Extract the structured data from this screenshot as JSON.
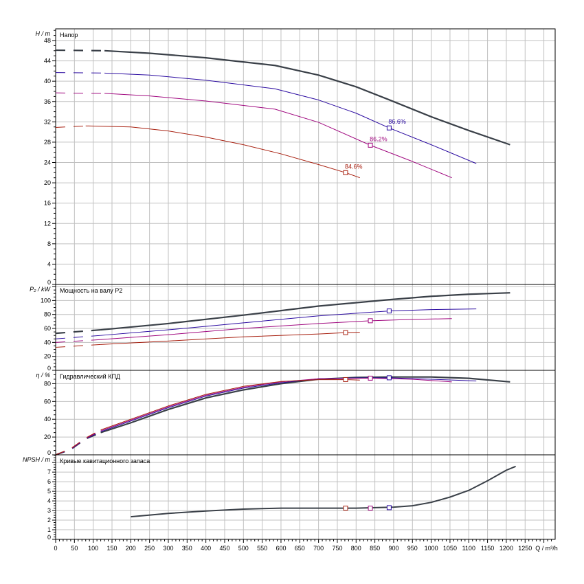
{
  "chart_data": {
    "type": "line",
    "x_axis": {
      "label": "Q / m³/h",
      "range": [
        0,
        1330
      ],
      "ticks": [
        0,
        50,
        100,
        150,
        200,
        250,
        300,
        350,
        400,
        450,
        500,
        550,
        600,
        650,
        700,
        750,
        800,
        850,
        900,
        950,
        1000,
        1050,
        1100,
        1150,
        1200,
        1250
      ]
    },
    "grid": true,
    "colors": {
      "c1": "#3a4048",
      "c2": "#2a0aa0",
      "c3": "#a0087f",
      "c4": "#a82010"
    },
    "panels": [
      {
        "id": "head",
        "title": "Напор",
        "ylabel": "H / m",
        "ylim": [
          0,
          50.3
        ],
        "tick_step": 4,
        "grid_step": 4,
        "series": [
          {
            "color": "c1",
            "width": 2.2,
            "dashed_until": 130,
            "points": [
              [
                0,
                46.1
              ],
              [
                130,
                46.0
              ],
              [
                250,
                45.5
              ],
              [
                400,
                44.6
              ],
              [
                584,
                43.1
              ],
              [
                700,
                41.2
              ],
              [
                800,
                38.9
              ],
              [
                886,
                36.4
              ],
              [
                1000,
                33.0
              ],
              [
                1100,
                30.3
              ],
              [
                1210,
                27.5
              ]
            ]
          },
          {
            "color": "c2",
            "width": 1,
            "dashed_until": 130,
            "points": [
              [
                0,
                41.7
              ],
              [
                130,
                41.6
              ],
              [
                250,
                41.2
              ],
              [
                400,
                40.2
              ],
              [
                584,
                38.5
              ],
              [
                700,
                36.3
              ],
              [
                800,
                33.7
              ],
              [
                888,
                30.8
              ],
              [
                1000,
                27.5
              ],
              [
                1120,
                23.8
              ]
            ]
          },
          {
            "color": "c3",
            "width": 1,
            "dashed_until": 130,
            "points": [
              [
                0,
                37.7
              ],
              [
                130,
                37.6
              ],
              [
                250,
                37.1
              ],
              [
                400,
                36.1
              ],
              [
                584,
                34.5
              ],
              [
                700,
                31.9
              ],
              [
                838,
                27.4
              ],
              [
                950,
                24.2
              ],
              [
                1055,
                21.0
              ]
            ]
          },
          {
            "color": "c4",
            "width": 1,
            "dashed_until": 80,
            "points": [
              [
                0,
                30.9
              ],
              [
                80,
                31.2
              ],
              [
                200,
                31.0
              ],
              [
                300,
                30.2
              ],
              [
                400,
                29.0
              ],
              [
                500,
                27.5
              ],
              [
                600,
                25.7
              ],
              [
                700,
                23.6
              ],
              [
                772,
                22.0
              ],
              [
                810,
                21.0
              ]
            ]
          }
        ],
        "markers": [
          {
            "color": "c2",
            "q": 888,
            "y": 30.8,
            "label": "86.6%"
          },
          {
            "color": "c3",
            "q": 838,
            "y": 27.4,
            "label": "86.2%"
          },
          {
            "color": "c4",
            "q": 772,
            "y": 22.0,
            "label": "84.6%"
          }
        ]
      },
      {
        "id": "power",
        "title": "Мощность на валу P2",
        "ylabel": "P₂ / kW",
        "ylim": [
          0,
          123
        ],
        "tick_step": 20,
        "grid_step": 20,
        "series": [
          {
            "color": "c1",
            "width": 2.2,
            "dashed_until": 120,
            "points": [
              [
                0,
                53
              ],
              [
                120,
                58
              ],
              [
                300,
                67
              ],
              [
                500,
                79
              ],
              [
                700,
                92
              ],
              [
                884,
                101
              ],
              [
                1000,
                106
              ],
              [
                1100,
                109
              ],
              [
                1210,
                111
              ]
            ]
          },
          {
            "color": "c2",
            "width": 1,
            "dashed_until": 120,
            "points": [
              [
                0,
                45
              ],
              [
                120,
                50
              ],
              [
                300,
                58
              ],
              [
                500,
                68
              ],
              [
                700,
                78
              ],
              [
                888,
                85
              ],
              [
                1000,
                87
              ],
              [
                1120,
                88
              ]
            ]
          },
          {
            "color": "c3",
            "width": 1,
            "dashed_until": 120,
            "points": [
              [
                0,
                40
              ],
              [
                120,
                44
              ],
              [
                300,
                51
              ],
              [
                500,
                60
              ],
              [
                700,
                67
              ],
              [
                838,
                71
              ],
              [
                950,
                73
              ],
              [
                1055,
                74
              ]
            ]
          },
          {
            "color": "c4",
            "width": 1,
            "dashed_until": 120,
            "points": [
              [
                0,
                33
              ],
              [
                120,
                37
              ],
              [
                300,
                42
              ],
              [
                500,
                48
              ],
              [
                700,
                52
              ],
              [
                772,
                54
              ],
              [
                810,
                54.5
              ]
            ]
          }
        ],
        "markers": [
          {
            "color": "c2",
            "q": 888,
            "y": 85
          },
          {
            "color": "c3",
            "q": 838,
            "y": 71
          },
          {
            "color": "c4",
            "q": 772,
            "y": 54
          }
        ]
      },
      {
        "id": "efficiency",
        "title": "Гидравлический КПД",
        "ylabel": "η / %",
        "ylim": [
          0,
          95
        ],
        "tick_step": 20,
        "grid_step": 20,
        "series": [
          {
            "color": "c1",
            "width": 2.2,
            "dashed_until": 120,
            "points": [
              [
                0,
                0
              ],
              [
                40,
                6
              ],
              [
                80,
                18
              ],
              [
                120,
                25
              ],
              [
                200,
                36
              ],
              [
                300,
                51
              ],
              [
                400,
                64
              ],
              [
                500,
                73
              ],
              [
                600,
                80
              ],
              [
                700,
                85
              ],
              [
                800,
                87
              ],
              [
                888,
                87.5
              ],
              [
                1000,
                87.5
              ],
              [
                1100,
                86
              ],
              [
                1210,
                82
              ]
            ]
          },
          {
            "color": "c2",
            "width": 1,
            "dashed_until": 120,
            "points": [
              [
                0,
                0
              ],
              [
                40,
                6
              ],
              [
                80,
                18
              ],
              [
                120,
                26
              ],
              [
                200,
                38
              ],
              [
                300,
                53
              ],
              [
                400,
                66
              ],
              [
                500,
                75
              ],
              [
                600,
                81
              ],
              [
                700,
                85.5
              ],
              [
                800,
                86.5
              ],
              [
                888,
                86.6
              ],
              [
                1000,
                85
              ],
              [
                1120,
                83
              ]
            ]
          },
          {
            "color": "c3",
            "width": 1,
            "dashed_until": 120,
            "points": [
              [
                0,
                0
              ],
              [
                40,
                6.5
              ],
              [
                80,
                18.5
              ],
              [
                120,
                27
              ],
              [
                200,
                39
              ],
              [
                300,
                54
              ],
              [
                400,
                67
              ],
              [
                500,
                76
              ],
              [
                600,
                82
              ],
              [
                700,
                85.5
              ],
              [
                838,
                86.2
              ],
              [
                950,
                85
              ],
              [
                1055,
                82
              ]
            ]
          },
          {
            "color": "c4",
            "width": 1,
            "dashed_until": 120,
            "points": [
              [
                0,
                0
              ],
              [
                40,
                7
              ],
              [
                80,
                19
              ],
              [
                120,
                28
              ],
              [
                200,
                40
              ],
              [
                300,
                55
              ],
              [
                400,
                68
              ],
              [
                500,
                77
              ],
              [
                600,
                82.5
              ],
              [
                700,
                84.5
              ],
              [
                772,
                84.6
              ],
              [
                810,
                84
              ]
            ]
          }
        ],
        "markers": [
          {
            "color": "c2",
            "q": 888,
            "y": 86.6
          },
          {
            "color": "c3",
            "q": 838,
            "y": 86.2
          },
          {
            "color": "c4",
            "q": 772,
            "y": 84.6
          }
        ]
      },
      {
        "id": "npsh",
        "title": "Кривые кавитационного запаса",
        "ylabel": "NPSH / m",
        "ylim": [
          0,
          8.8
        ],
        "tick_step": 1,
        "grid_step": 1,
        "series": [
          {
            "color": "c1",
            "width": 2,
            "dashed_until": 0,
            "points": [
              [
                200,
                2.35
              ],
              [
                300,
                2.7
              ],
              [
                400,
                2.95
              ],
              [
                500,
                3.15
              ],
              [
                600,
                3.25
              ],
              [
                700,
                3.25
              ],
              [
                800,
                3.25
              ],
              [
                900,
                3.35
              ],
              [
                950,
                3.5
              ],
              [
                1000,
                3.85
              ],
              [
                1050,
                4.4
              ],
              [
                1100,
                5.1
              ],
              [
                1150,
                6.1
              ],
              [
                1200,
                7.2
              ],
              [
                1225,
                7.6
              ]
            ]
          }
        ],
        "markers": [
          {
            "color": "c4",
            "q": 772,
            "y": 3.25
          },
          {
            "color": "c3",
            "q": 838,
            "y": 3.25
          },
          {
            "color": "c2",
            "q": 888,
            "y": 3.3
          }
        ]
      }
    ]
  }
}
